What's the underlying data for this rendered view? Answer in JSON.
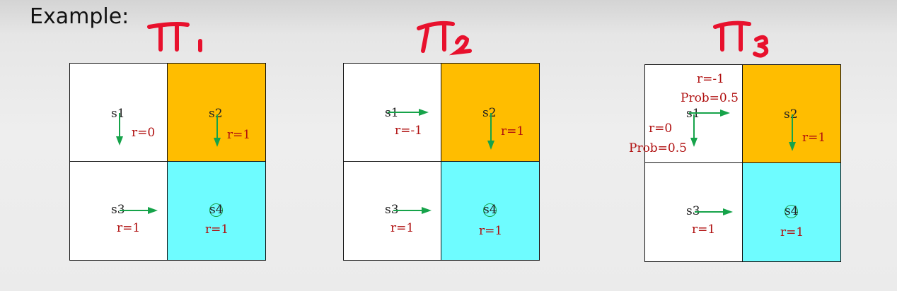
{
  "header": {
    "text": "Example:"
  },
  "colors": {
    "s2": "#ffbd00",
    "s4": "#6efcff",
    "arrow": "#16a34a",
    "annotation": "#e8112d",
    "reward_text": "#b01010"
  },
  "policies": [
    {
      "states": {
        "s1": "s1",
        "s2": "s2",
        "s3": "s3",
        "s4": "s4"
      },
      "rewards": {
        "s1": "r=0",
        "s2": "r=1",
        "s3": "r=1",
        "s4": "r=1"
      },
      "actions": {
        "s1": "down",
        "s2": "down",
        "s3": "right"
      }
    },
    {
      "states": {
        "s1": "s1",
        "s2": "s2",
        "s3": "s3",
        "s4": "s4"
      },
      "rewards": {
        "s1": "r=-1",
        "s2": "r=1",
        "s3": "r=1",
        "s4": "r=1"
      },
      "actions": {
        "s1": "right",
        "s2": "down",
        "s3": "right"
      }
    },
    {
      "states": {
        "s1": "s1",
        "s2": "s2",
        "s3": "s3",
        "s4": "s4"
      },
      "rewards": {
        "s1_right": "r=-1",
        "s1_right_prob": "Prob=0.5",
        "s1_down": "r=0",
        "s1_down_prob": "Prob=0.5",
        "s2": "r=1",
        "s3": "r=1",
        "s4": "r=1"
      },
      "actions": {
        "s1": "right|down",
        "s2": "down",
        "s3": "right"
      }
    }
  ]
}
